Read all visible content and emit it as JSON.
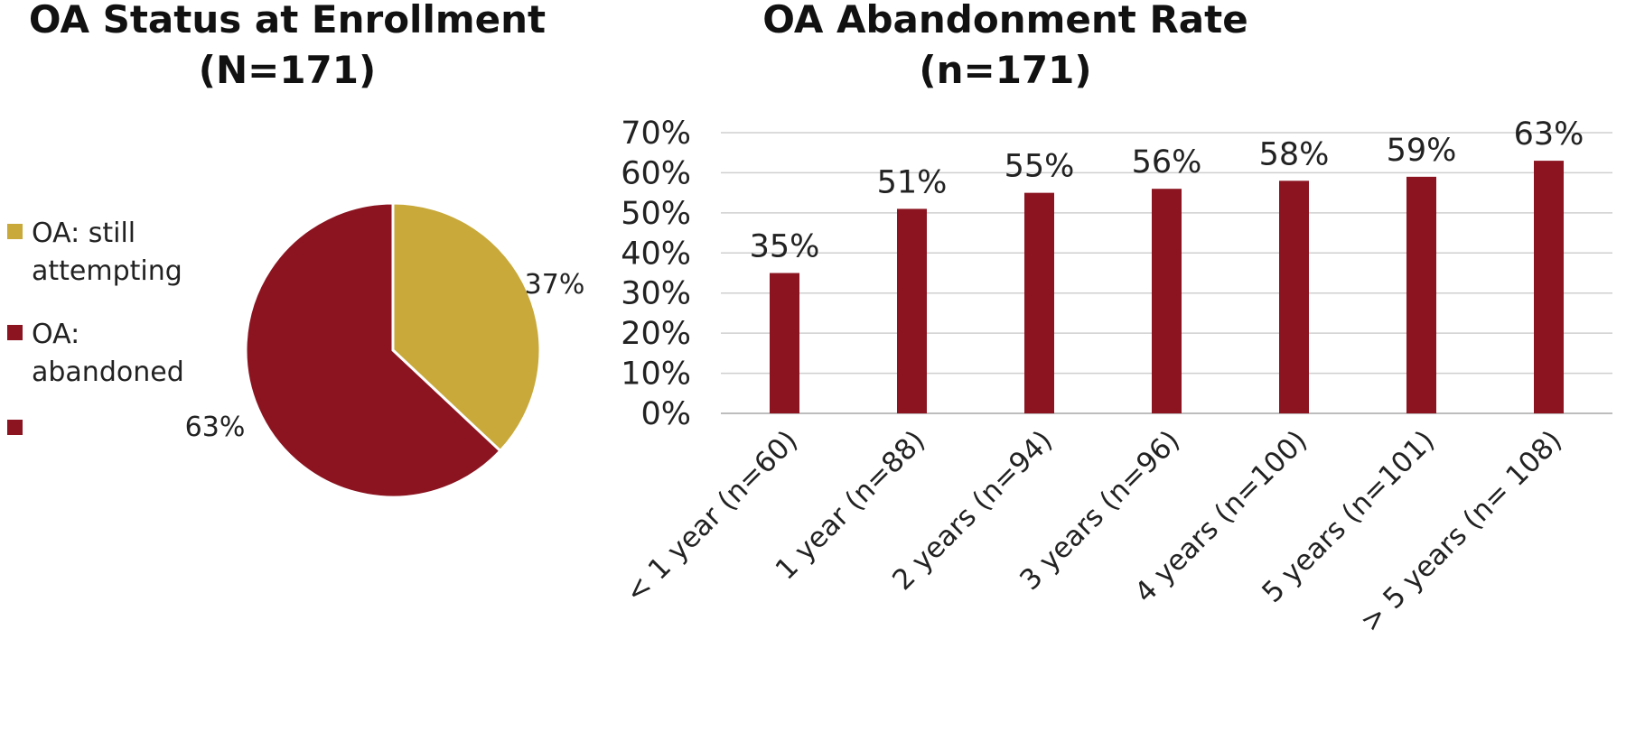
{
  "chart_data": [
    {
      "type": "pie",
      "title": "OA Status at Enrollment",
      "subtitle": "(N=171)",
      "slices": [
        {
          "label": "OA: still attempting",
          "value": 37,
          "display": "37%",
          "color": "#c8a93a",
          "legend_lines": [
            "OA: still",
            "attempting"
          ]
        },
        {
          "label": "OA: abandoned",
          "value": 63,
          "display": "63%",
          "color": "#8b1420",
          "legend_lines": [
            "OA:",
            "abandoned"
          ]
        }
      ],
      "legend_extra_color": "#8b1420",
      "legend_position": "left"
    },
    {
      "type": "bar",
      "title": "OA Abandonment Rate",
      "subtitle": "(n=171)",
      "categories": [
        "< 1 year (n=60)",
        "1 year (n=88)",
        "2 years (n=94)",
        "3 years (n=96)",
        "4 years (n=100)",
        "5 years (n=101)",
        "> 5 years (n= 108)"
      ],
      "values": [
        35,
        51,
        55,
        56,
        58,
        59,
        63
      ],
      "data_labels": [
        "35%",
        "51%",
        "55%",
        "56%",
        "58%",
        "59%",
        "63%"
      ],
      "y_ticks": [
        "0%",
        "10%",
        "20%",
        "30%",
        "40%",
        "50%",
        "60%",
        "70%"
      ],
      "ylim": [
        0,
        70
      ],
      "grid": true,
      "bar_color": "#8b1420"
    }
  ]
}
